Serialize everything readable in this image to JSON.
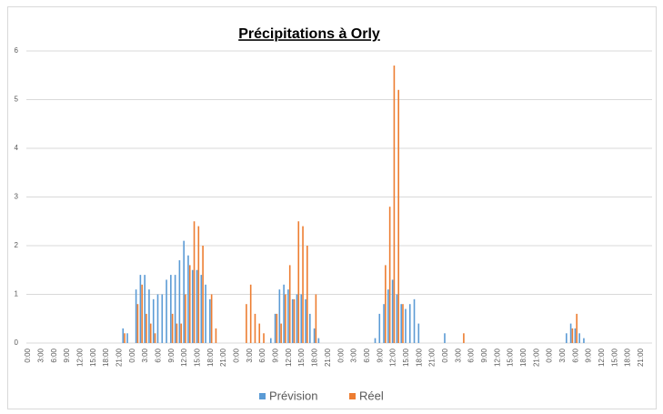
{
  "chart_data": {
    "type": "bar",
    "title": "Précipitations à Orly",
    "categories": [
      "0:00",
      null,
      null,
      "3:00",
      null,
      null,
      "6:00",
      null,
      null,
      "9:00",
      null,
      null,
      "12:00",
      null,
      null,
      "15:00",
      null,
      null,
      "18:00",
      null,
      null,
      "21:00",
      null,
      null,
      "0:00",
      null,
      null,
      "3:00",
      null,
      null,
      "6:00",
      null,
      null,
      "9:00",
      null,
      null,
      "12:00",
      null,
      null,
      "15:00",
      null,
      null,
      "18:00",
      null,
      null,
      "21:00",
      null,
      null,
      "0:00",
      null,
      null,
      "3:00",
      null,
      null,
      "6:00",
      null,
      null,
      "9:00",
      null,
      null,
      "12:00",
      null,
      null,
      "15:00",
      null,
      null,
      "18:00",
      null,
      null,
      "21:00",
      null,
      null,
      "0:00",
      null,
      null,
      "3:00",
      null,
      null,
      "6:00",
      null,
      null,
      "9:00",
      null,
      null,
      "12:00",
      null,
      null,
      "15:00",
      null,
      null,
      "18:00",
      null,
      null,
      "21:00",
      null,
      null,
      "0:00",
      null,
      null,
      "3:00",
      null,
      null,
      "6:00",
      null,
      null,
      "9:00",
      null,
      null,
      "12:00",
      null,
      null,
      "15:00",
      null,
      null,
      "18:00",
      null,
      null,
      "21:00",
      null,
      null,
      "0:00",
      null,
      null,
      "3:00",
      null,
      null,
      "6:00",
      null,
      null,
      "9:00",
      null,
      null,
      "12:00",
      null,
      null,
      "15:00",
      null,
      null,
      "18:00",
      null,
      null,
      "21:00",
      null,
      null
    ],
    "series": [
      {
        "name": "Prévision",
        "color": "#5b9bd5",
        "values": [
          0,
          0,
          0,
          0,
          0,
          0,
          0,
          0,
          0,
          0,
          0,
          0,
          0,
          0,
          0,
          0,
          0,
          0,
          0,
          0,
          0,
          0,
          0.3,
          0.2,
          0,
          1.1,
          1.4,
          1.4,
          1.1,
          0.9,
          1,
          1,
          1.3,
          1.4,
          1.4,
          1.7,
          2.1,
          1.8,
          1.5,
          1.5,
          1.4,
          1.2,
          0.9,
          0,
          0,
          0,
          0,
          0,
          0,
          0,
          0,
          0,
          0,
          0,
          0,
          0,
          0.1,
          0.6,
          1.1,
          1.2,
          1.1,
          0.9,
          1,
          1,
          0.9,
          0.6,
          0.3,
          0.1,
          0,
          0,
          0,
          0,
          0,
          0,
          0,
          0,
          0,
          0,
          0,
          0,
          0.1,
          0.6,
          0.8,
          1.1,
          1.3,
          1,
          0.8,
          0.7,
          0.8,
          0.9,
          0.4,
          0,
          0,
          0,
          0,
          0,
          0.2,
          0,
          0,
          0,
          0,
          0,
          0,
          0,
          0,
          0,
          0,
          0,
          0,
          0,
          0,
          0,
          0,
          0,
          0,
          0,
          0,
          0,
          0,
          0,
          0,
          0,
          0,
          0,
          0.2,
          0.4,
          0.3,
          0.2,
          0.1,
          0,
          0,
          0,
          0,
          0,
          0,
          0,
          0,
          0,
          0,
          0,
          0,
          0,
          0,
          0
        ]
      },
      {
        "name": "Réel",
        "color": "#ed7d31",
        "values": [
          0,
          0,
          0,
          0,
          0,
          0,
          0,
          0,
          0,
          0,
          0,
          0,
          0,
          0,
          0,
          0,
          0,
          0,
          0,
          0,
          0,
          0,
          0.2,
          0,
          0,
          0.8,
          1.2,
          0.6,
          0.4,
          0.2,
          0,
          0,
          0,
          0.6,
          0.4,
          0.4,
          1,
          1.6,
          2.5,
          2.4,
          2,
          0,
          1,
          0.3,
          0,
          0,
          0,
          0,
          0,
          0,
          0.8,
          1.2,
          0.6,
          0.4,
          0.2,
          0,
          0,
          0.6,
          0.4,
          1,
          1.6,
          0.9,
          2.5,
          2.4,
          2,
          0,
          1,
          0,
          0,
          0,
          0,
          0,
          0,
          0,
          0,
          0,
          0,
          0,
          0,
          0,
          0,
          0,
          1.6,
          2.8,
          5.7,
          5.2,
          0.8,
          0,
          0,
          0,
          0,
          0,
          0,
          0,
          0,
          0,
          0,
          0,
          0,
          0,
          0.2,
          0,
          0,
          0,
          0,
          0,
          0,
          0,
          0,
          0,
          0,
          0,
          0,
          0,
          0,
          0,
          0,
          0,
          0,
          0,
          0,
          0,
          0,
          0,
          0,
          0.3,
          0.6,
          0,
          0,
          0,
          0,
          0,
          0,
          0,
          0,
          0,
          0,
          0,
          0,
          0,
          0,
          0,
          0,
          0
        ]
      }
    ],
    "ylim": [
      0,
      6
    ],
    "yticks": [
      0,
      1,
      2,
      3,
      4,
      5,
      6
    ],
    "grid": true,
    "legend": "bottom"
  }
}
